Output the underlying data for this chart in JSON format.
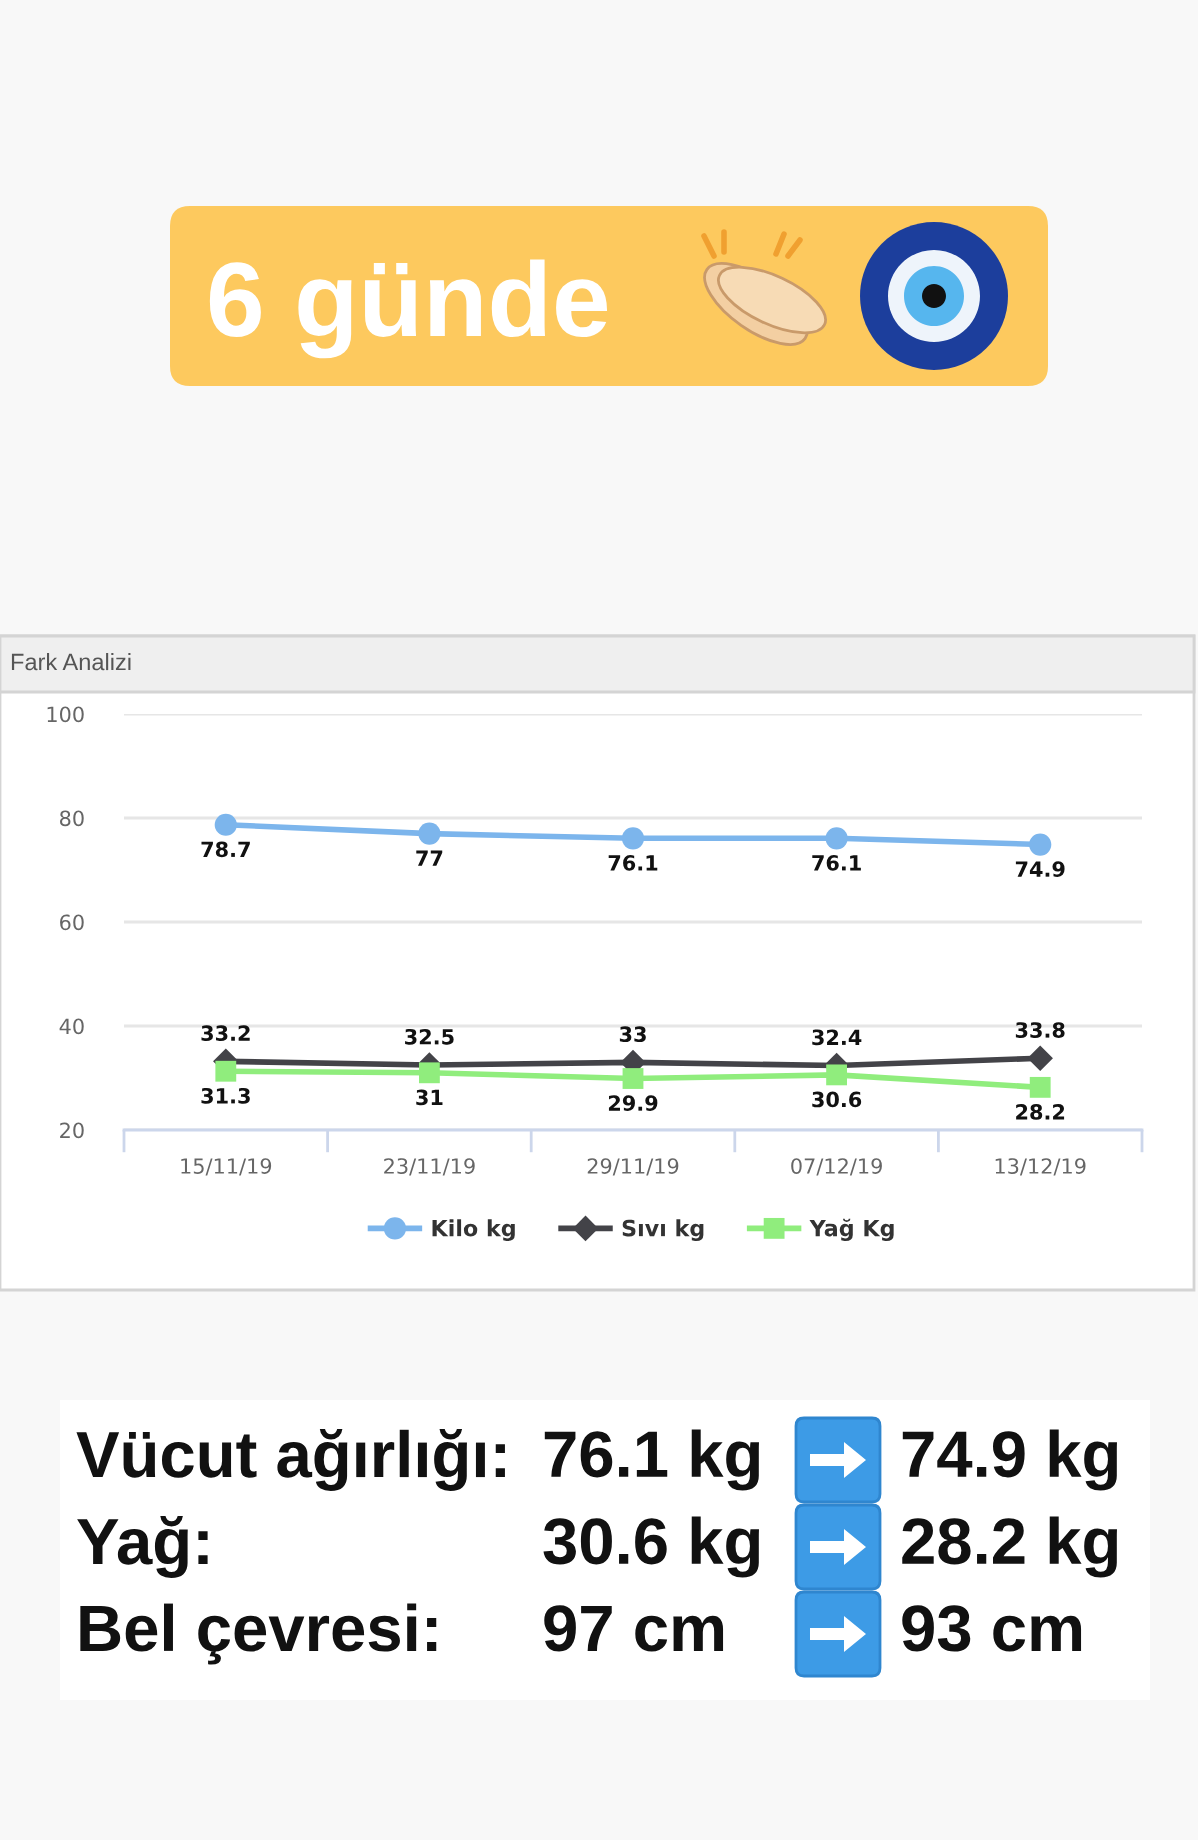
{
  "chart_data": {
    "type": "line",
    "title": "6 günde",
    "subtitle": "Fark Analizi",
    "categories": [
      "15/11/19",
      "23/11/19",
      "29/11/19",
      "07/12/19",
      "13/12/19"
    ],
    "series": [
      {
        "name": "Kilo kg",
        "color": "#7cb5ec",
        "marker": "circle",
        "values": [
          78.7,
          77,
          76.1,
          76.1,
          74.9
        ]
      },
      {
        "name": "Sıvı kg",
        "color": "#434348",
        "marker": "diamond",
        "values": [
          33.2,
          32.5,
          33,
          32.4,
          33.8
        ]
      },
      {
        "name": "Yağ Kg",
        "color": "#90ed7d",
        "marker": "square",
        "values": [
          31.3,
          31,
          29.9,
          30.6,
          28.2
        ]
      }
    ],
    "ylim": [
      20,
      100
    ],
    "yticks": [
      20,
      40,
      60,
      80,
      100
    ],
    "grid": "y",
    "legend": "bottom",
    "data_labels": true,
    "line_style": "solid",
    "annotations": [
      "Vücut ağırlığı:",
      "76.1 kg",
      "74.9 kg",
      "Yağ:",
      "30.6 kg",
      "28.2 kg",
      "Bel çevresi:",
      "97 cm",
      "93 cm"
    ]
  }
}
